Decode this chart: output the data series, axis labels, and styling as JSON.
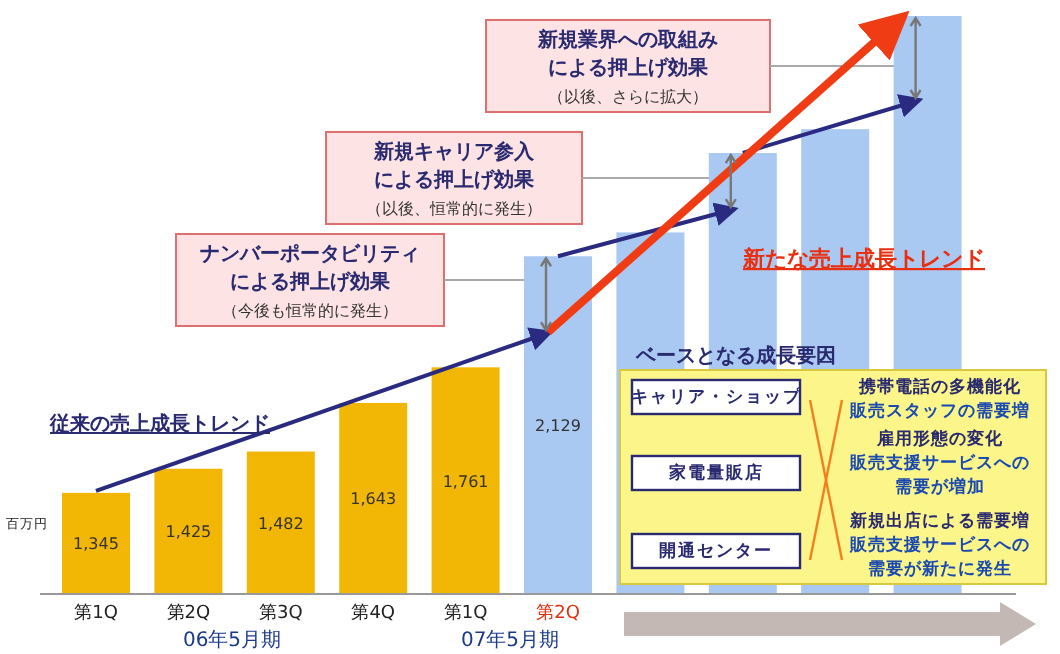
{
  "chart_data": {
    "type": "bar",
    "ylabel": "百万円",
    "categories": [
      "第1Q",
      "第2Q",
      "第3Q",
      "第4Q",
      "第1Q",
      "第2Q",
      null,
      null,
      null,
      null
    ],
    "values": [
      1345,
      1425,
      1482,
      1643,
      1761,
      2129,
      2208,
      2471,
      2550,
      2925
    ],
    "colors": [
      "#f2b705",
      "#f2b705",
      "#f2b705",
      "#f2b705",
      "#f2b705",
      "#a9c9f2",
      "#a9c9f2",
      "#a9c9f2",
      "#a9c9f2",
      "#a9c9f2"
    ],
    "value_labels": [
      "1,345",
      "1,425",
      "1,482",
      "1,643",
      "1,761",
      "2,129",
      null,
      null,
      null,
      null
    ],
    "ylim": [
      1010,
      2925
    ],
    "annotations": [
      "新規業界への取組み",
      "による押上げ効果",
      "（以後、さらに拡大）",
      "新規キャリア参入",
      "による押上げ効果",
      "（以後、恒常的に発生）",
      "ナンバーポータビリティ",
      "による押上げ効果",
      "（今後も恒常的に発生）",
      "従来の売上成長トレンド",
      "新たな売上成長トレンド",
      "06年5月期",
      "07年5月期",
      "ベースとなる成長要因",
      "キャリア・ショップ",
      "家電量販店",
      "開通センター",
      "携帯電話の多機能化",
      "販売スタッフの需要増",
      "雇用形態の変化",
      "販売支援サービスへの",
      "需要が増加",
      "新規出店による需要増",
      "販売支援サービスへの",
      "需要が新たに発生"
    ]
  }
}
